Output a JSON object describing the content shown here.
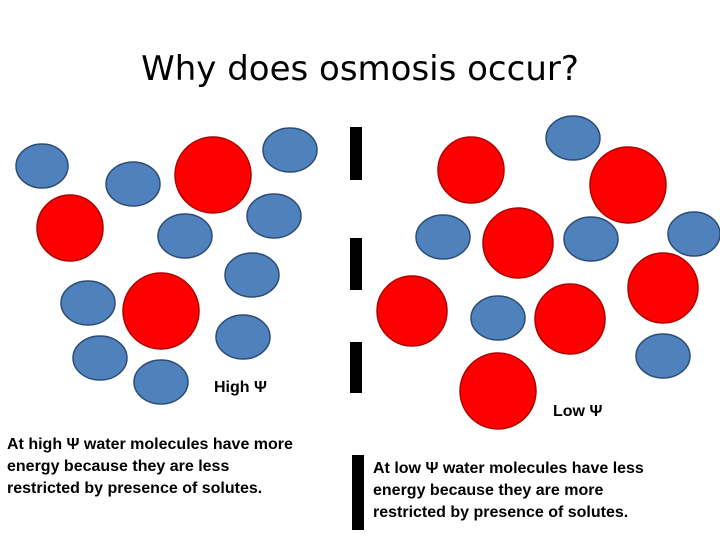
{
  "title": "Why does osmosis occur?",
  "left": {
    "label": "High Ψ",
    "description": [
      "At high Ψ water molecules have more",
      "energy because they are less",
      "restricted by presence of solutes."
    ]
  },
  "right": {
    "label": "Low Ψ",
    "description": [
      "At low Ψ water molecules have less",
      "energy because they are more",
      "restricted by presence of solutes."
    ]
  }
}
